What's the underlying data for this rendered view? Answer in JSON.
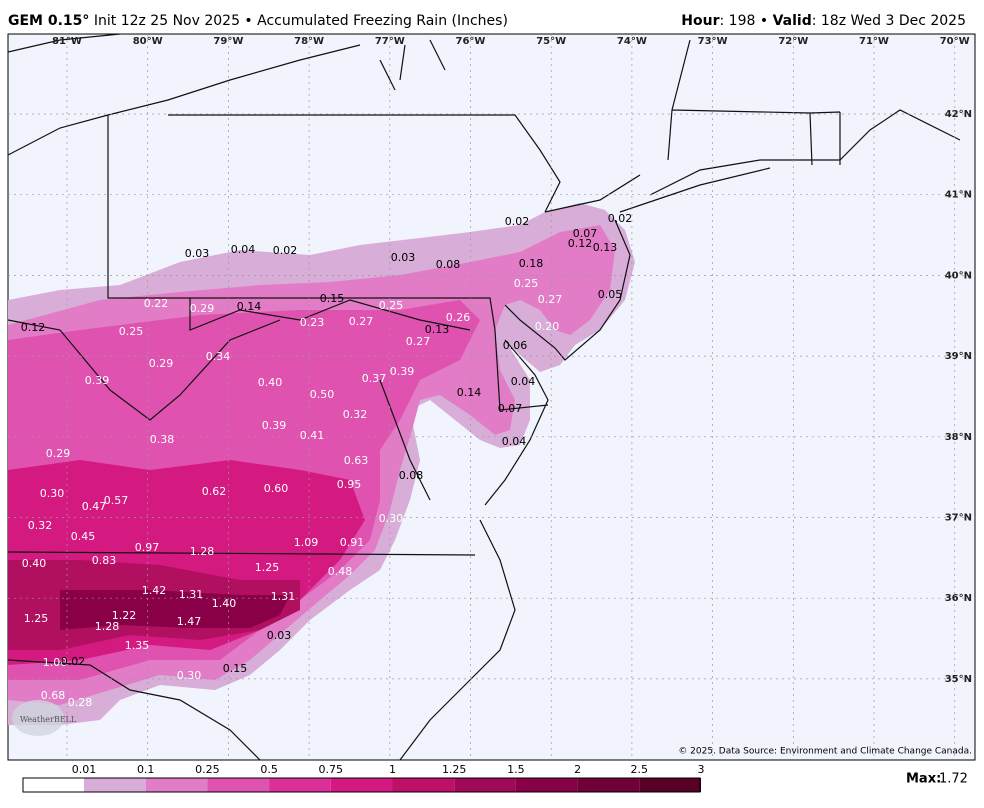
{
  "header": {
    "model": "GEM 0.15°",
    "run": "Init 12z 25 Nov 2025 • Accumulated Freezing Rain (Inches)",
    "hour_label": "Hour",
    "hour_text": ": 198 •",
    "valid_label": "Valid",
    "valid_text": ": 18z Wed 3 Dec 2025"
  },
  "map": {
    "longitudes": [
      "81°W",
      "80°W",
      "79°W",
      "78°W",
      "77°W",
      "76°W",
      "75°W",
      "74°W",
      "73°W",
      "72°W",
      "71°W",
      "70°W"
    ],
    "latitudes": [
      "42°N",
      "41°N",
      "40°N",
      "39°N",
      "38°N",
      "37°N",
      "36°N",
      "35°N"
    ],
    "point_labels": [
      "0.02",
      "0.02",
      "0.07",
      "0.12",
      "0.13",
      "0.03",
      "0.04",
      "0.02",
      "0.03",
      "0.08",
      "0.18",
      "0.25",
      "0.27",
      "0.05",
      "0.22",
      "0.29",
      "0.14",
      "0.15",
      "0.25",
      "0.12",
      "0.25",
      "0.23",
      "0.27",
      "0.13",
      "0.26",
      "0.20",
      "0.27",
      "0.06",
      "0.34",
      "0.29",
      "0.39",
      "0.40",
      "0.37",
      "0.39",
      "0.04",
      "0.50",
      "0.14",
      "0.07",
      "0.32",
      "0.39",
      "0.41",
      "0.38",
      "0.04",
      "0.29",
      "0.63",
      "0.08",
      "0.95",
      "0.62",
      "0.60",
      "0.30",
      "0.47",
      "0.57",
      "0.30",
      "0.32",
      "0.45",
      "1.09",
      "0.91",
      "0.97",
      "1.28",
      "0.83",
      "0.40",
      "1.25",
      "0.48",
      "1.42",
      "1.31",
      "1.40",
      "1.31",
      "1.22",
      "1.25",
      "1.47",
      "1.28",
      "0.03",
      "1.35",
      "1.00",
      "0.02",
      "0.15",
      "0.30",
      "0.68",
      "0.28"
    ]
  },
  "legend": {
    "ticks": [
      0.01,
      0.1,
      0.25,
      0.5,
      0.75,
      1,
      1.25,
      1.5,
      2,
      2.5,
      3
    ],
    "colors": [
      "#ffffff",
      "#d8aed8",
      "#e27cc6",
      "#e052b0",
      "#dc2e98",
      "#d41a80",
      "#be1068",
      "#a00858",
      "#880048",
      "#700038",
      "#580028"
    ],
    "max_label": "Max:",
    "max": 1.72
  },
  "footer": {
    "credit": "© 2025. Data Source: Environment and Climate Change Canada."
  },
  "logo": "WeatherBELL"
}
